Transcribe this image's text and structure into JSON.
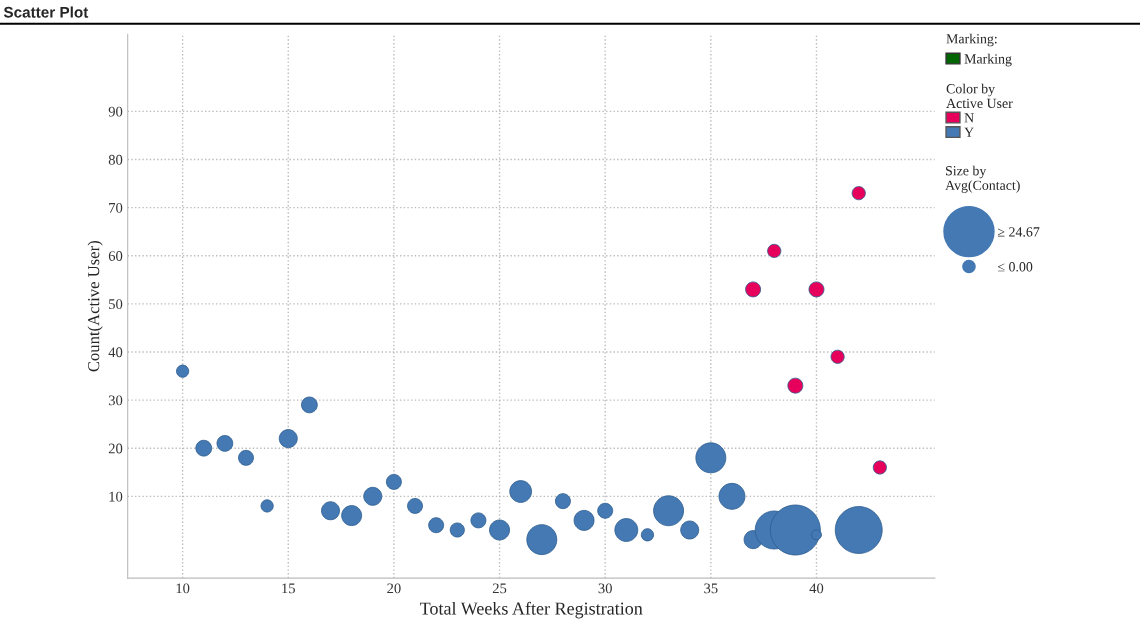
{
  "chart_data": {
    "type": "bubble",
    "title": "Scatter Plot",
    "xlabel": "Total Weeks After Registration",
    "ylabel": "Count(Active User)",
    "legend_title": "Color by\nActive User",
    "annotations": [
      "Marking:",
      "Marking",
      "Size by\nAvg(Contact)"
    ],
    "xlim": [
      7.4,
      45.6
    ],
    "ylim": [
      -7,
      106
    ],
    "xticks": [
      10,
      15,
      20,
      25,
      30,
      35,
      40
    ],
    "yticks": [
      10,
      20,
      30,
      40,
      50,
      60,
      70,
      80,
      90
    ],
    "grid": true,
    "legend": "right",
    "marker": "circle",
    "size_legend": [
      {
        "value": 1,
        "label": "≥ 24.67"
      },
      {
        "value": 0.06,
        "label": "≤ 0.00"
      }
    ],
    "series": [
      {
        "name": "N",
        "color": "#e6005c",
        "x": [
          37,
          38,
          39,
          40,
          41,
          42,
          43
        ],
        "values": [
          53,
          61,
          33,
          53,
          39,
          73,
          16
        ],
        "sizes": [
          0.09,
          0.07,
          0.09,
          0.09,
          0.07,
          0.07,
          0.07
        ]
      },
      {
        "name": "Y",
        "color": "#4479b4",
        "x": [
          10,
          11,
          12,
          13,
          14,
          15,
          16,
          17,
          18,
          19,
          20,
          21,
          22,
          23,
          24,
          25,
          26,
          27,
          28,
          29,
          30,
          31,
          32,
          33,
          34,
          35,
          36,
          37,
          38,
          39,
          40,
          42
        ],
        "values": [
          36,
          20,
          21,
          18,
          8,
          22,
          29,
          7,
          6,
          10,
          13,
          8,
          4,
          3,
          5,
          3,
          11,
          1,
          9,
          5,
          7,
          3,
          2,
          7,
          3,
          18,
          10,
          1,
          3,
          3,
          2,
          3
        ],
        "sizes": [
          0.06,
          0.1,
          0.1,
          0.09,
          0.06,
          0.13,
          0.1,
          0.13,
          0.16,
          0.13,
          0.09,
          0.09,
          0.09,
          0.08,
          0.09,
          0.16,
          0.19,
          0.36,
          0.09,
          0.16,
          0.09,
          0.21,
          0.06,
          0.36,
          0.13,
          0.36,
          0.27,
          0.13,
          0.58,
          1,
          0.04,
          0.88
        ]
      }
    ]
  }
}
